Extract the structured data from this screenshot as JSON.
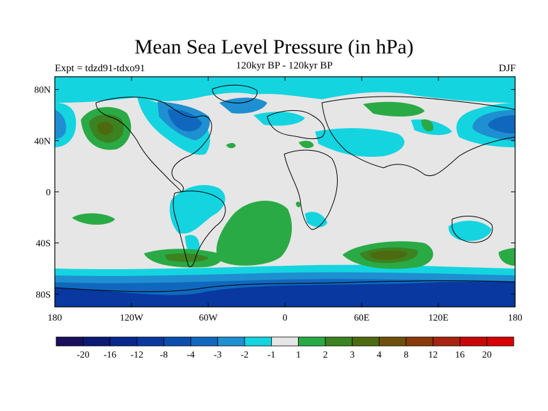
{
  "title": "Mean Sea Level Pressure (in hPa)",
  "left_label": "Expt = tdzd91-tdxo91",
  "center_label": "120kyr BP - 120kyr BP",
  "right_label": "DJF",
  "map": {
    "projection": "cylindrical equidistant",
    "lon_range": [
      -180,
      180
    ],
    "lat_range": [
      -90,
      90
    ],
    "x_ticks": [
      "180",
      "120W",
      "60W",
      "0",
      "60E",
      "120E",
      "180"
    ],
    "y_ticks": [
      "80N",
      "40N",
      "0",
      "40S",
      "80S"
    ],
    "background_color": "#e6e6e6",
    "coastline_color": "#000000"
  },
  "colorbar": {
    "labels": [
      "-20",
      "-16",
      "-12",
      "-8",
      "-4",
      "-3",
      "-2",
      "-1",
      "1",
      "2",
      "3",
      "4",
      "8",
      "12",
      "16",
      "20"
    ],
    "colors": [
      "#1a0f5c",
      "#0b1a75",
      "#08288e",
      "#0838a0",
      "#0a4fae",
      "#1068be",
      "#1e8fd0",
      "#14d4e0",
      "#e6e6e6",
      "#2aaa45",
      "#3c8220",
      "#4e6a10",
      "#6e500c",
      "#8a3a0a",
      "#a82410",
      "#c80808",
      "#d80000"
    ]
  },
  "regions": [
    {
      "name": "antarctic-low-band",
      "level": -8
    },
    {
      "name": "north-pacific-high",
      "level": 4
    },
    {
      "name": "south-atlantic-high",
      "level": 2
    },
    {
      "name": "south-indian-high",
      "level": 4
    },
    {
      "name": "arctic-low",
      "level": -4
    },
    {
      "name": "australia-low",
      "level": -2
    }
  ]
}
